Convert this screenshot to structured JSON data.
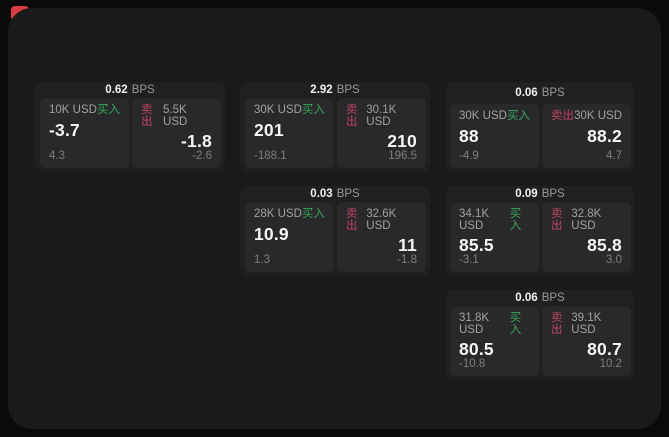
{
  "app": {
    "unit": "BPS",
    "buy_label": "买入",
    "sell_label": "卖出"
  },
  "colors": {
    "buy_green": "#3aa85c",
    "sell_red": "#bf4360",
    "page_bg": "#0a0a0a",
    "surface_bg": "#1a1a1b",
    "card_bg": "#202022",
    "panel_bg": "#29292b",
    "badge_red": "#d93b40"
  },
  "cards": [
    {
      "bps": "0.62",
      "buy": {
        "size": "10K USD",
        "price": "-3.7",
        "delta": "4.3"
      },
      "sell": {
        "size": "5.5K USD",
        "price": "-1.8",
        "delta": "-2.6"
      }
    },
    {
      "bps": "2.92",
      "buy": {
        "size": "30K USD",
        "price": "201",
        "delta": "-188.1"
      },
      "sell": {
        "size": "30.1K USD",
        "price": "210",
        "delta": "196.5"
      }
    },
    {
      "bps": "0.06",
      "buy": {
        "size": "30K USD",
        "price": "88",
        "delta": "-4.9"
      },
      "sell": {
        "size": "30K USD",
        "price": "88.2",
        "delta": "4.7"
      }
    },
    {
      "bps": "0.03",
      "buy": {
        "size": "28K USD",
        "price": "10.9",
        "delta": "1.3"
      },
      "sell": {
        "size": "32.6K USD",
        "price": "11",
        "delta": "-1.8"
      }
    },
    {
      "bps": "0.09",
      "buy": {
        "size": "34.1K USD",
        "price": "85.5",
        "delta": "-3.1"
      },
      "sell": {
        "size": "32.8K USD",
        "price": "85.8",
        "delta": "3.0"
      }
    },
    {
      "bps": "0.06",
      "buy": {
        "size": "31.8K USD",
        "price": "80.5",
        "delta": "-10.8"
      },
      "sell": {
        "size": "39.1K USD",
        "price": "80.7",
        "delta": "10.2"
      }
    }
  ]
}
